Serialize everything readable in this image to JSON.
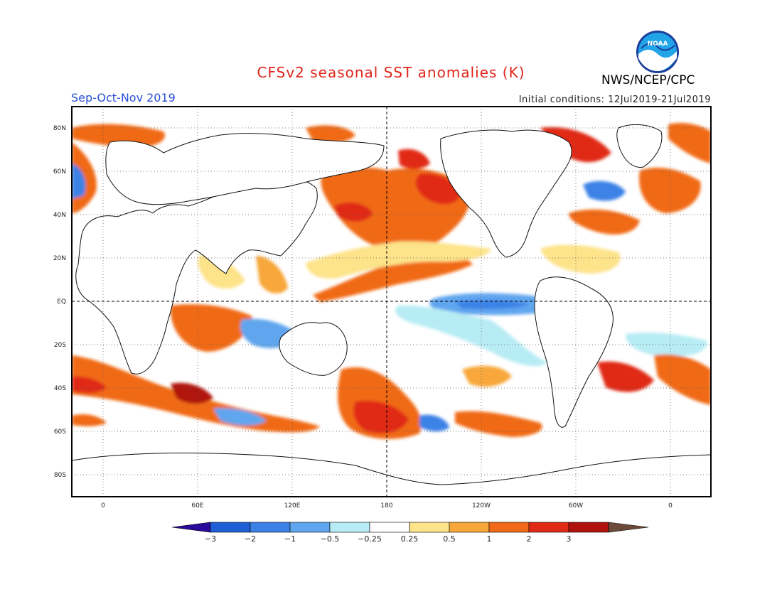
{
  "header": {
    "title": "CFSv2 seasonal SST anomalies (K)",
    "agency": "NWS/NCEP/CPC",
    "season": "Sep-Oct-Nov 2019",
    "initial_conditions": "Initial conditions: 12Jul2019-21Jul2019",
    "logo_text": "NOAA"
  },
  "map": {
    "lat_labels": [
      "80N",
      "60N",
      "40N",
      "20N",
      "EQ",
      "20S",
      "40S",
      "60S",
      "80S"
    ],
    "lon_labels": [
      "0",
      "60E",
      "120E",
      "180",
      "120W",
      "60W",
      "0"
    ],
    "projection": "cylindrical-equidistant",
    "center_longitude": "180",
    "grid": "dotted",
    "land_color": "#ffffff"
  },
  "colorbar": {
    "labels": [
      "-3",
      "-2",
      "-1",
      "-0.5",
      "-0.25",
      "0.25",
      "0.5",
      "1",
      "2",
      "3"
    ],
    "colors": [
      "#2a0a9a",
      "#1f5fd6",
      "#3c82e6",
      "#60a6ee",
      "#b8ecf4",
      "#ffffff",
      "#fde38a",
      "#f7a73a",
      "#f06a18",
      "#e02a16",
      "#b0120e",
      "#6b4a3a"
    ]
  }
}
